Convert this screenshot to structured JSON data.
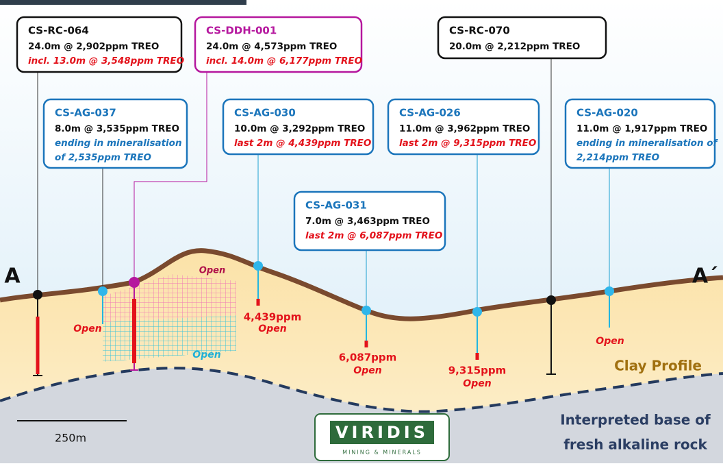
{
  "section": {
    "left_label": "A",
    "right_label": "A´"
  },
  "drillholes": [
    {
      "id": "CS-RC-064",
      "lines": [
        "24.0m @ 2,902ppm TREO",
        "incl. 13.0m @ 3,548ppm TREO"
      ]
    },
    {
      "id": "CS-DDH-001",
      "lines": [
        "24.0m @ 4,573ppm TREO",
        "incl. 14.0m @ 6,177ppm TREO"
      ]
    },
    {
      "id": "CS-RC-070",
      "lines": [
        "20.0m @ 2,212ppm TREO"
      ]
    },
    {
      "id": "CS-AG-037",
      "lines": [
        "8.0m @ 3,535ppm TREO",
        "ending in mineralisation",
        "of 2,535ppm TREO"
      ]
    },
    {
      "id": "CS-AG-030",
      "lines": [
        "10.0m @ 3,292ppm TREO",
        "last 2m @ 4,439ppm TREO"
      ]
    },
    {
      "id": "CS-AG-026",
      "lines": [
        "11.0m @ 3,962ppm TREO",
        "last 2m @ 9,315ppm TREO"
      ]
    },
    {
      "id": "CS-AG-020",
      "lines": [
        "11.0m @ 1,917ppm TREO",
        "ending in mineralisation of",
        "2,214ppm TREO"
      ]
    },
    {
      "id": "CS-AG-031",
      "lines": [
        "7.0m @ 3,463ppm TREO",
        "last 2m @ 6,087ppm TREO"
      ]
    }
  ],
  "ground_labels": [
    "Open",
    "Open",
    "Open",
    "4,439ppm",
    "Open",
    "6,087ppm",
    "Open",
    "9,315ppm",
    "Open",
    "Open"
  ],
  "clay_label": "Clay Profile",
  "base_label": [
    "Interpreted base of",
    "fresh alkaline rock"
  ],
  "scale_label": "250m",
  "logo": {
    "name": "VIRIDIS",
    "tagline": "MINING & MINERALS"
  }
}
